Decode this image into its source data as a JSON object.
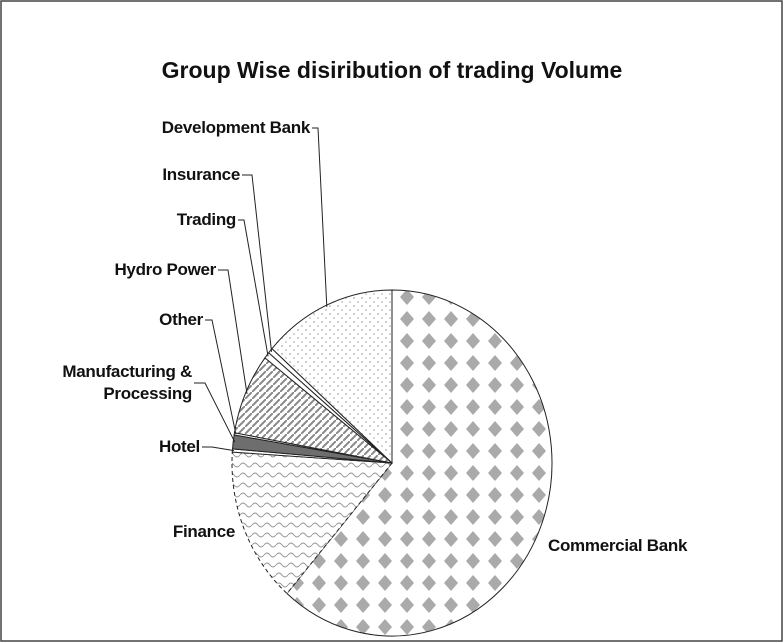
{
  "chart_data": {
    "type": "pie",
    "title": "Group Wise disiribution of trading Volume",
    "categories": [
      "Commercial Bank",
      "Finance",
      "Hotel",
      "Manufacturing & Processing",
      "Other",
      "Hydro Power",
      "Trading",
      "Insurance",
      "Development Bank"
    ],
    "values": [
      61.4,
      14.6,
      0.3,
      1.3,
      0.2,
      7.6,
      0.6,
      0.5,
      13.5
    ]
  }
}
